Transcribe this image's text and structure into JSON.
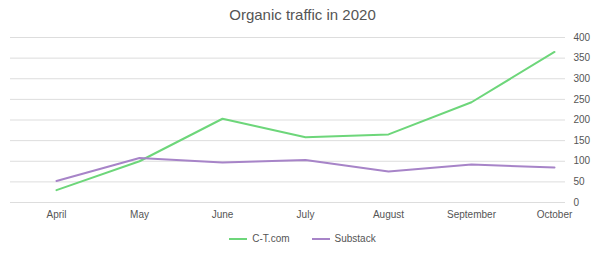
{
  "chart_data": {
    "type": "line",
    "title": "Organic traffic in 2020",
    "categories": [
      "April",
      "May",
      "June",
      "July",
      "August",
      "September",
      "October"
    ],
    "series": [
      {
        "name": "C-T.com",
        "color": "#6dd67a",
        "values": [
          30,
          100,
          203,
          158,
          165,
          243,
          365
        ]
      },
      {
        "name": "Substack",
        "color": "#a784c8",
        "values": [
          52,
          108,
          97,
          103,
          75,
          92,
          85
        ]
      }
    ],
    "ylim": [
      0,
      400
    ],
    "yticks": [
      0,
      50,
      100,
      150,
      200,
      250,
      300,
      350,
      400
    ],
    "grid": true,
    "legend": "bottom"
  }
}
